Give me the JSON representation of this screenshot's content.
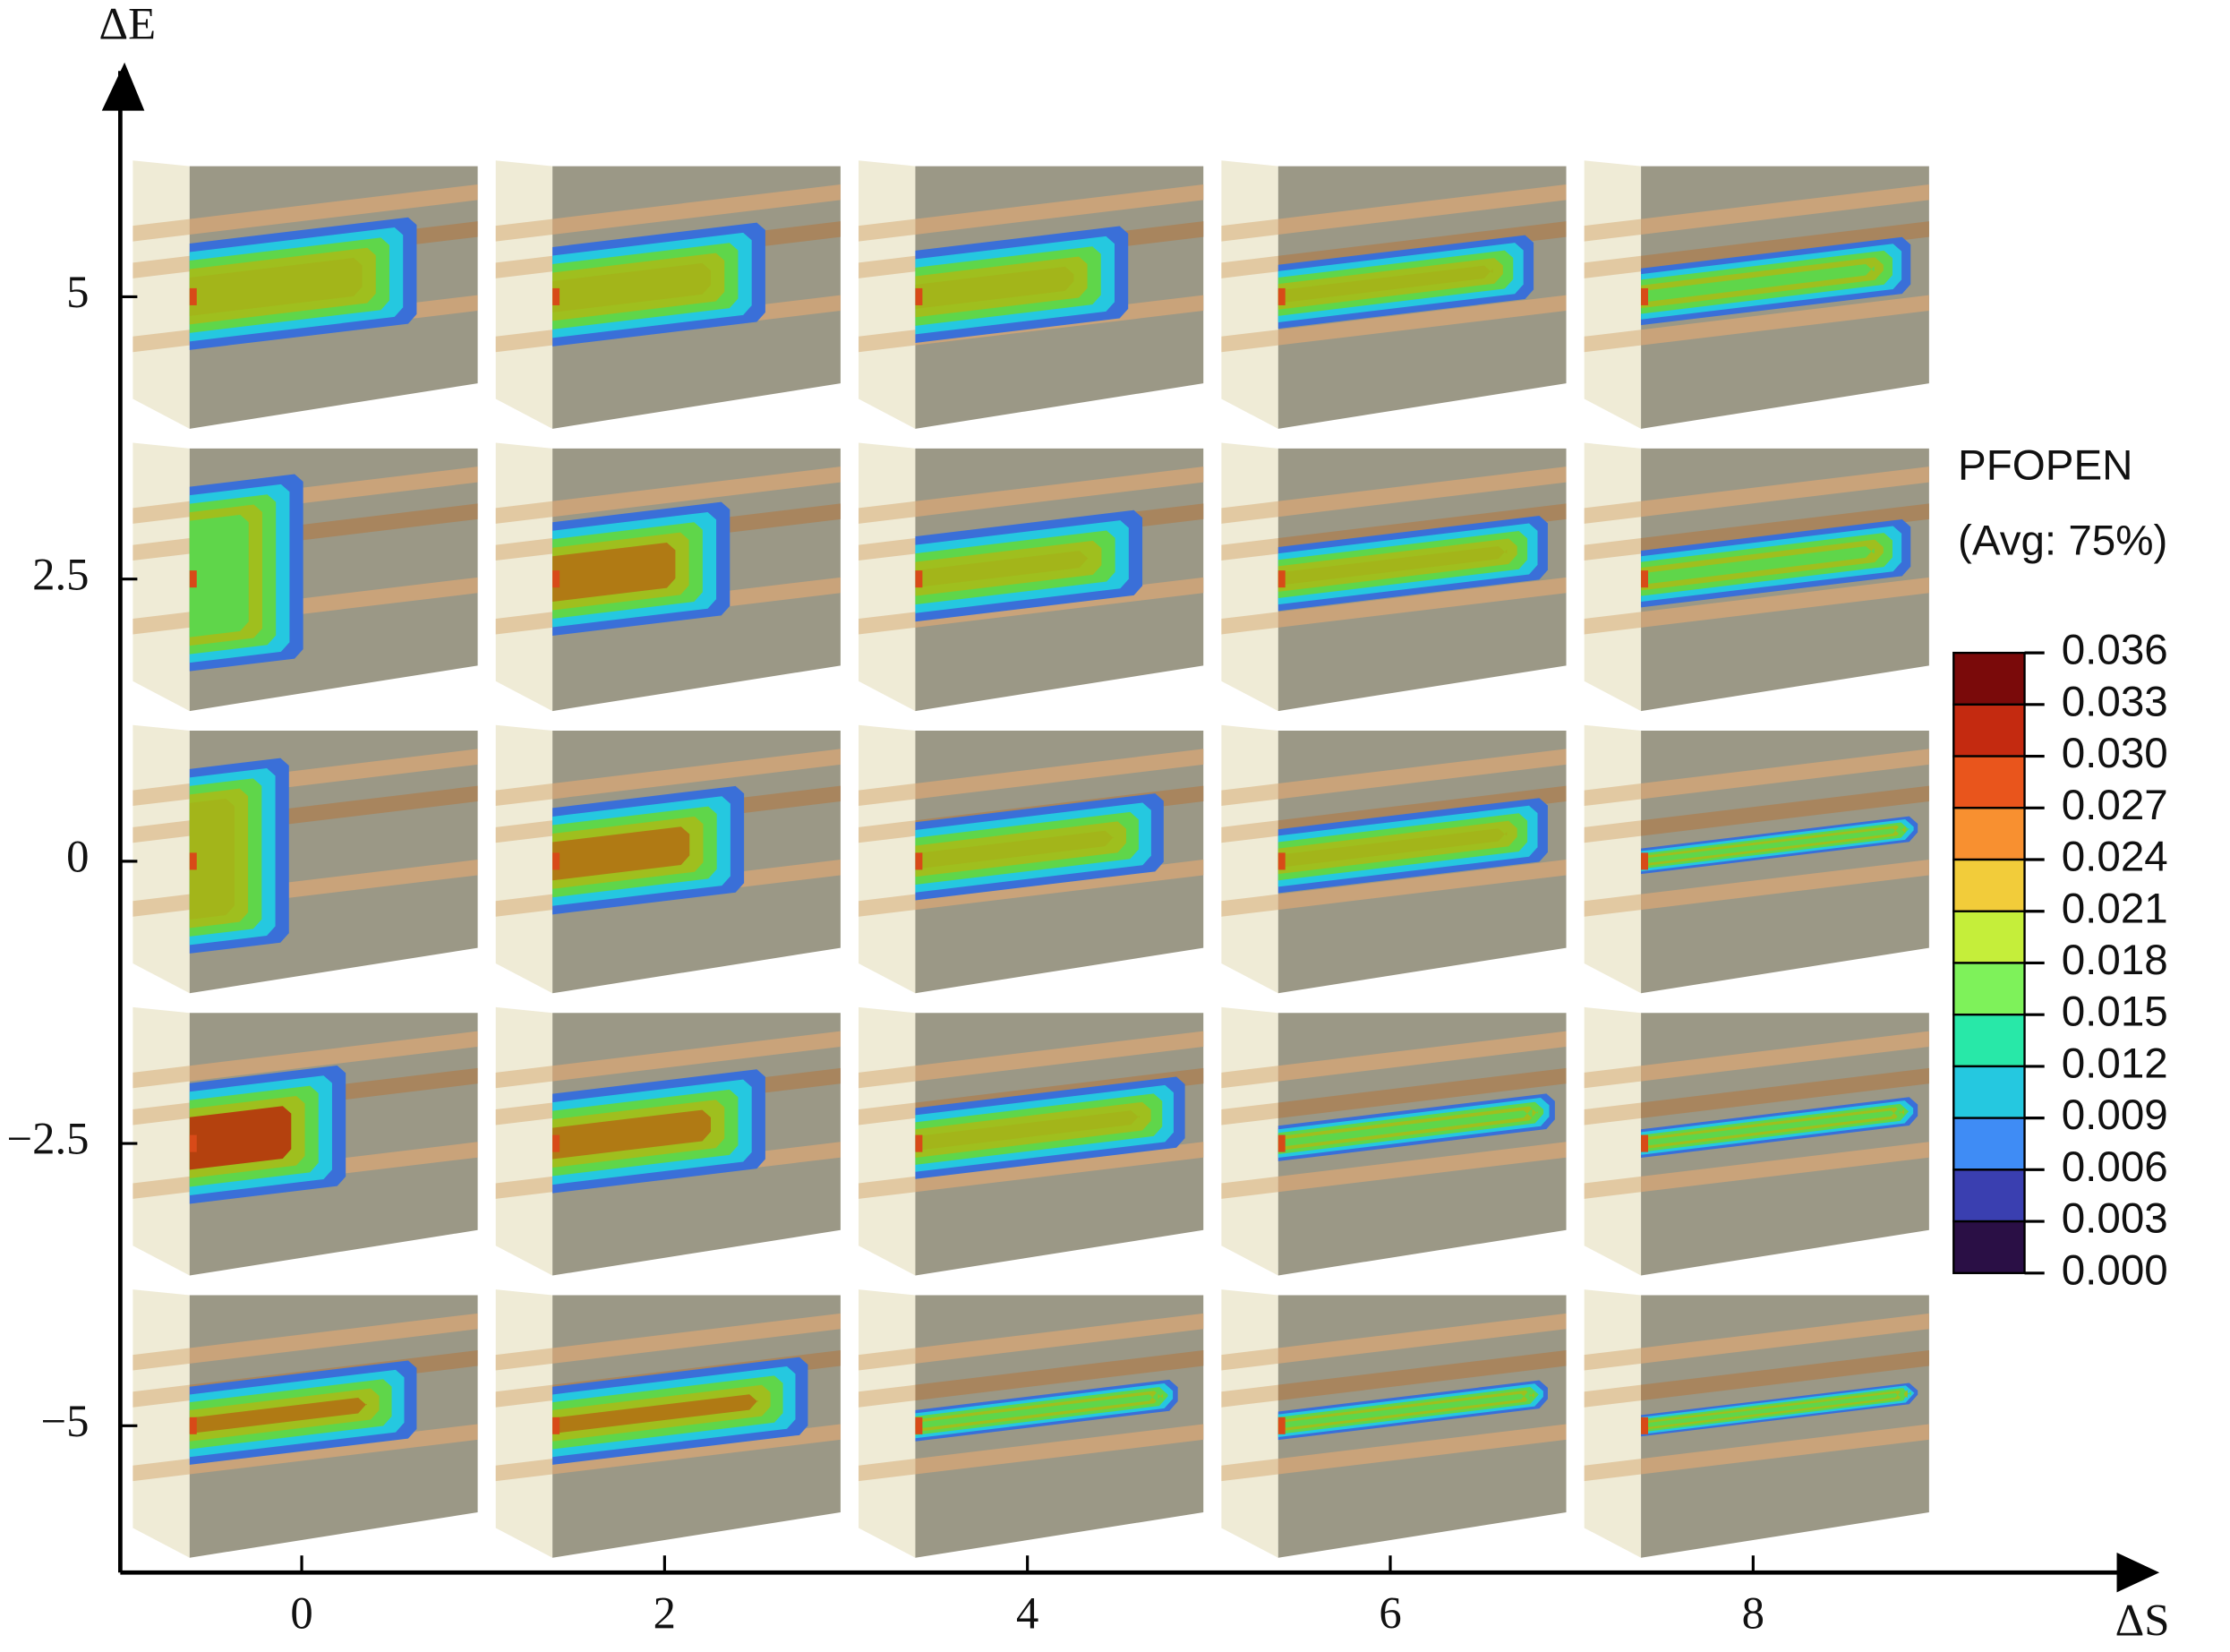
{
  "chart_data": {
    "type": "grid",
    "x_label": "ΔS",
    "y_label": "ΔE",
    "xlim": [
      -1,
      10.2
    ],
    "ylim": [
      -6.3,
      7
    ],
    "xticks": [
      0,
      2,
      4,
      6,
      8
    ],
    "yticks": [
      {
        "value": -5,
        "label": "−5"
      },
      {
        "value": -2.5,
        "label": "−2.5"
      },
      0,
      2.5,
      5
    ],
    "colorbar": {
      "title": "PFOPEN",
      "subtitle": "(Avg: 75%)",
      "ticks": [
        0.036,
        0.033,
        {
          "value": 0.03,
          "label": "0.030"
        },
        0.027,
        0.024,
        0.021,
        0.018,
        0.015,
        0.012,
        0.009,
        0.006,
        0.003,
        {
          "value": 0,
          "label": "0.000"
        }
      ],
      "colors": [
        "#7a0a0a",
        "#c42a10",
        "#e9551c",
        "#f89030",
        "#f2cc3a",
        "#c5ee3a",
        "#7ef25a",
        "#28e8a8",
        "#25c8e0",
        "#3f8cf5",
        "#3a3fb0",
        "#2a0f45"
      ]
    }
  }
}
